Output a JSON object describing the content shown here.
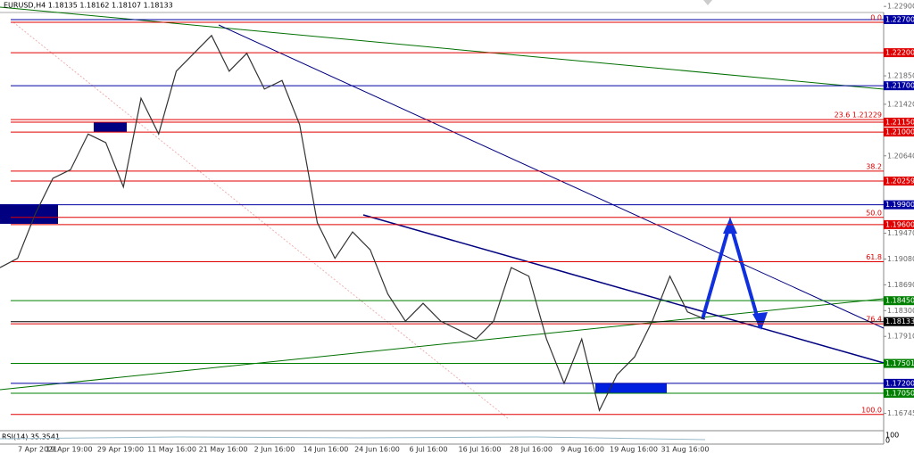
{
  "header": "EURUSD,H4  1.18135 1.18162 1.18107 1.18133",
  "indicator": "RSI(14) 35.3541",
  "indicator_scale": [
    "100",
    "0"
  ],
  "levels": [
    {
      "value": 1.227,
      "label": "1.22700",
      "color": "#0000a0"
    },
    {
      "value": 1.222,
      "label": "1.22200",
      "color": "#e00000"
    },
    {
      "value": 1.217,
      "label": "1.21700",
      "color": "#0000a0"
    },
    {
      "value": 1.2115,
      "label": "1.21150",
      "color": "#e00000"
    },
    {
      "value": 1.21,
      "label": "1.21000",
      "color": "#e00000"
    },
    {
      "value": 1.20259,
      "label": "1.20259",
      "color": "#e00000"
    },
    {
      "value": 1.199,
      "label": "1.19900",
      "color": "#0000a0"
    },
    {
      "value": 1.196,
      "label": "1.19600",
      "color": "#e00000"
    },
    {
      "value": 1.1845,
      "label": "1.18450",
      "color": "#008000"
    },
    {
      "value": 1.18133,
      "label": "1.18133",
      "color": "#000000"
    },
    {
      "value": 1.17501,
      "label": "1.17501",
      "color": "#008000"
    },
    {
      "value": 1.172,
      "label": "1.17200",
      "color": "#0000a0"
    },
    {
      "value": 1.1705,
      "label": "1.17050",
      "color": "#008000"
    }
  ],
  "price_ticks": [
    {
      "value": 1.229,
      "label": "1.22900"
    },
    {
      "value": 1.2185,
      "label": "1.21850"
    },
    {
      "value": 1.2142,
      "label": "1.21420"
    },
    {
      "value": 1.2064,
      "label": "1.20640"
    },
    {
      "value": 1.1947,
      "label": "1.19470"
    },
    {
      "value": 1.1908,
      "label": "1.19080"
    },
    {
      "value": 1.1869,
      "label": "1.18690"
    },
    {
      "value": 1.183,
      "label": "1.18300"
    },
    {
      "value": 1.1791,
      "label": "1.17910"
    },
    {
      "value": 1.16745,
      "label": "1.16745"
    }
  ],
  "fib_levels": [
    {
      "value": 1.227,
      "label": "0.0"
    },
    {
      "value": 1.21229,
      "label": "23.6 1.21229"
    },
    {
      "value": 1.2045,
      "label": "38.2"
    },
    {
      "value": 1.1975,
      "label": "50.0"
    },
    {
      "value": 1.1908,
      "label": "61.8"
    },
    {
      "value": 1.1814,
      "label": "76.4"
    },
    {
      "value": 1.1677,
      "label": "100.0"
    }
  ],
  "time_labels": [
    "7 Apr 2021",
    "19 Apr 19:00",
    "29 Apr 19:00",
    "11 May 16:00",
    "21 May 16:00",
    "2 Jun 16:00",
    "14 Jun 16:00",
    "24 Jun 16:00",
    "6 Jul 16:00",
    "16 Jul 16:00",
    "28 Jul 16:00",
    "9 Aug 16:00",
    "19 Aug 16:00",
    "31 Aug 16:00"
  ],
  "price_path": [
    1.1895,
    1.1909,
    1.1976,
    1.203,
    1.2043,
    1.2097,
    1.2084,
    1.2017,
    1.2151,
    1.2097,
    1.2192,
    1.2219,
    1.2246,
    1.2192,
    1.2219,
    1.2165,
    1.2178,
    1.2111,
    1.1963,
    1.1909,
    1.1949,
    1.1922,
    1.1855,
    1.1814,
    1.1841,
    1.1814,
    1.1801,
    1.1787,
    1.1814,
    1.1895,
    1.1882,
    1.1787,
    1.172,
    1.1787,
    1.1679,
    1.1733,
    1.176,
    1.1814,
    1.1882,
    1.1828,
    1.1817
  ]
}
